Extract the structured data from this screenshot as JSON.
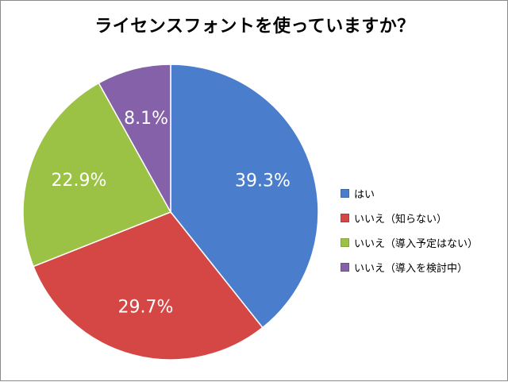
{
  "chart_data": {
    "type": "pie",
    "title": "ライセンスフォントを使っていますか？",
    "categories": [
      "はい",
      "いいえ（知らない）",
      "いいえ（導入予定はない）",
      "いいえ（導入を検討中）"
    ],
    "values": [
      39.3,
      29.7,
      22.9,
      8.1
    ],
    "value_labels": [
      "39.3%",
      "29.7%",
      "22.9%",
      "8.1%"
    ],
    "colors": [
      "#4a7ecc",
      "#d44744",
      "#9bc244",
      "#8461a8"
    ],
    "legend_position": "right"
  }
}
